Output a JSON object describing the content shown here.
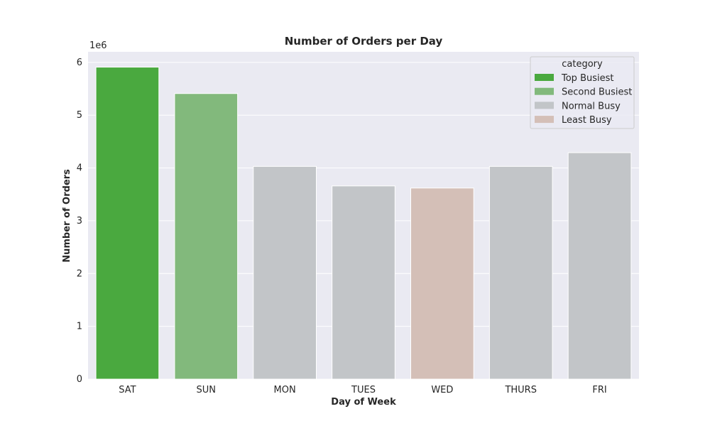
{
  "chart_data": {
    "type": "bar",
    "title": "Number of Orders per Day",
    "xlabel": "Day of Week",
    "ylabel": "Number of Orders",
    "offset_label": "1e6",
    "categories": [
      "SAT",
      "SUN",
      "MON",
      "TUES",
      "WED",
      "THURS",
      "FRI"
    ],
    "values": [
      5910000,
      5410000,
      4030000,
      3660000,
      3620000,
      4030000,
      4290000
    ],
    "bar_category": [
      "Top Busiest",
      "Second Busiest",
      "Normal Busy",
      "Normal Busy",
      "Least Busy",
      "Normal Busy",
      "Normal Busy"
    ],
    "ylim": [
      0,
      6200000
    ],
    "yticks": [
      0,
      1000000,
      2000000,
      3000000,
      4000000,
      5000000,
      6000000
    ],
    "ytick_labels": [
      "0",
      "1",
      "2",
      "3",
      "4",
      "5",
      "6"
    ],
    "grid": true,
    "legend": {
      "title": "category",
      "placement": "top-right",
      "entries": [
        {
          "label": "Top Busiest",
          "color": "#4aa93f"
        },
        {
          "label": "Second Busiest",
          "color": "#82b97c"
        },
        {
          "label": "Normal Busy",
          "color": "#c2c5c8"
        },
        {
          "label": "Least Busy",
          "color": "#d4bfb7"
        }
      ]
    },
    "colors": {
      "background": "#eaeaf2",
      "grid": "#ffffff",
      "Top Busiest": "#4aa93f",
      "Second Busiest": "#82b97c",
      "Normal Busy": "#c2c5c8",
      "Least Busy": "#d4bfb7"
    }
  }
}
